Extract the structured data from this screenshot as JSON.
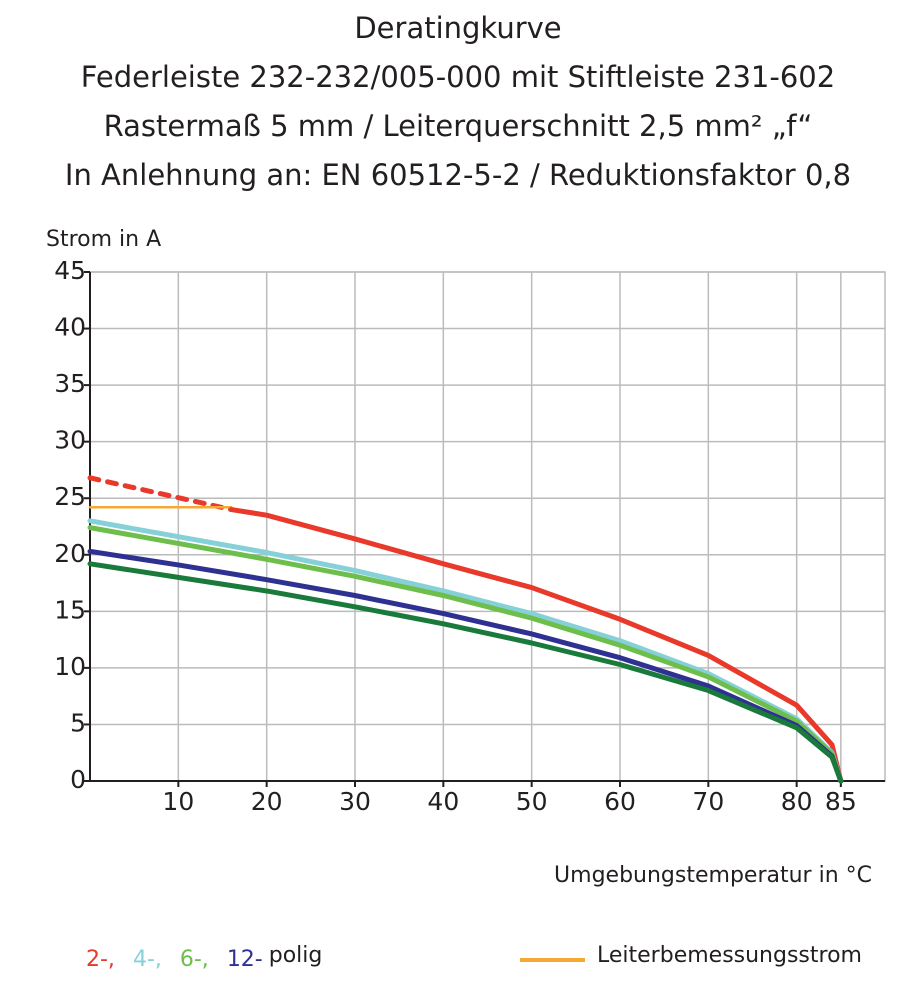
{
  "chart_data": {
    "type": "line",
    "title_lines": [
      "Deratingkurve",
      "Federleiste 232-232/005-000 mit Stiftleiste 231-602",
      "Rastermaß 5 mm / Leiterquerschnitt 2,5 mm² „f“",
      "In Anlehnung an: EN 60512-5-2 / Reduktionsfaktor 0,8"
    ],
    "y_label": "Strom in A",
    "x_label": "Umgebungstemperatur in °C",
    "legend_suffix": "polig",
    "xlim": [
      0,
      90
    ],
    "xticks": [
      10,
      20,
      30,
      40,
      50,
      60,
      70,
      80,
      85
    ],
    "ylim": [
      0,
      45
    ],
    "yticks": [
      0,
      5,
      10,
      15,
      20,
      25,
      30,
      35,
      40,
      45
    ],
    "grid": true,
    "series": [
      {
        "color": "#e8392b",
        "dash": true,
        "x": [
          0,
          16
        ],
        "values": [
          26.8,
          24.0
        ]
      },
      {
        "name": "Leiterbemessungsstrom",
        "color": "#f7a833",
        "x": [
          0,
          16
        ],
        "values": [
          24.2,
          24.2
        ]
      },
      {
        "name": "2-,",
        "color": "#e8392b",
        "x": [
          16,
          20,
          30,
          40,
          50,
          60,
          70,
          80,
          84,
          85
        ],
        "values": [
          24.0,
          23.5,
          21.4,
          19.2,
          17.1,
          14.3,
          11.1,
          6.7,
          3.2,
          0
        ]
      },
      {
        "name": "4-,",
        "color": "#86d0d8",
        "x": [
          0,
          10,
          20,
          30,
          40,
          50,
          60,
          70,
          80,
          84,
          85
        ],
        "values": [
          23.0,
          21.6,
          20.2,
          18.6,
          16.8,
          14.8,
          12.4,
          9.5,
          5.5,
          2.5,
          0
        ]
      },
      {
        "name": "6-,",
        "color": "#6dbe4b",
        "x": [
          0,
          10,
          20,
          30,
          40,
          50,
          60,
          70,
          80,
          84,
          85
        ],
        "values": [
          22.4,
          21.0,
          19.6,
          18.1,
          16.4,
          14.4,
          12.0,
          9.2,
          5.3,
          2.4,
          0
        ]
      },
      {
        "name": "12-",
        "color": "#2e3192",
        "x": [
          0,
          10,
          20,
          30,
          40,
          50,
          60,
          70,
          80,
          84,
          85
        ],
        "values": [
          20.3,
          19.1,
          17.8,
          16.4,
          14.8,
          13.0,
          10.9,
          8.4,
          4.9,
          2.2,
          0
        ]
      },
      {
        "color": "#1a7a3c",
        "x": [
          0,
          10,
          20,
          30,
          40,
          50,
          60,
          70,
          80,
          84,
          85
        ],
        "values": [
          19.2,
          18.0,
          16.8,
          15.4,
          13.9,
          12.2,
          10.3,
          8.0,
          4.7,
          2.1,
          0
        ]
      }
    ]
  }
}
